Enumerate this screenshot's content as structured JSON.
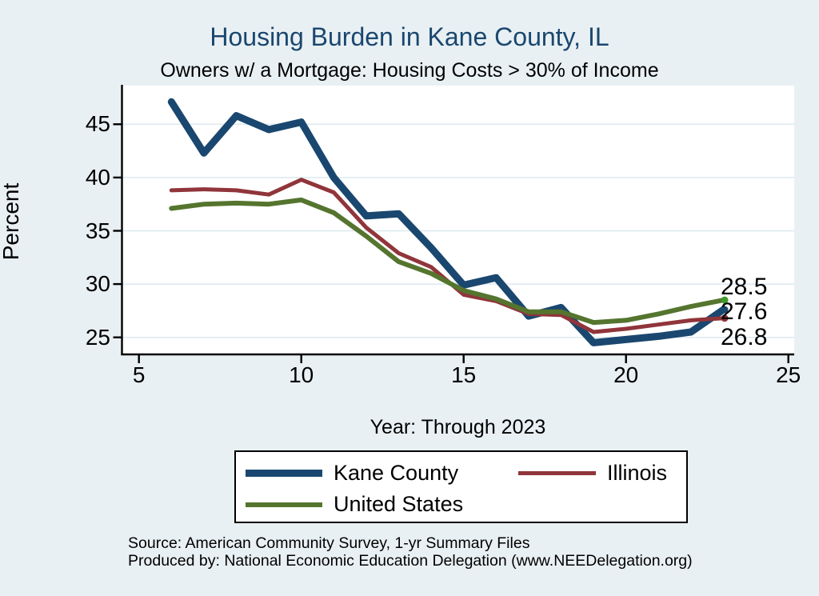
{
  "header": {
    "title": "Housing Burden in Kane County, IL",
    "subtitle": "Owners w/ a Mortgage: Housing Costs > 30% of Income"
  },
  "chart_data": {
    "type": "line",
    "title": "Housing Burden in Kane County, IL",
    "subtitle": "Owners w/ a Mortgage: Housing Costs > 30% of Income",
    "xlabel": "Year: Through 2023",
    "ylabel": "Percent",
    "xlim": [
      5,
      25
    ],
    "ylim": [
      24,
      47.5
    ],
    "xticks": [
      5,
      10,
      15,
      20,
      25
    ],
    "yticks": [
      25,
      30,
      35,
      40,
      45
    ],
    "grid": "horizontal",
    "legend_position": "bottom",
    "x": [
      6,
      7,
      8,
      9,
      10,
      11,
      12,
      13,
      14,
      15,
      16,
      17,
      18,
      19,
      20,
      21,
      22,
      23
    ],
    "series": [
      {
        "name": "Kane County",
        "color": "#1a476f",
        "line_width": 9,
        "values": [
          47.1,
          42.3,
          45.8,
          44.5,
          45.2,
          40.0,
          36.4,
          36.6,
          33.4,
          29.9,
          30.6,
          27.0,
          27.8,
          24.5,
          24.8,
          25.1,
          25.5,
          27.6
        ],
        "end_label": "27.6"
      },
      {
        "name": "Illinois",
        "color": "#90353b",
        "line_width": 5,
        "values": [
          38.8,
          38.9,
          38.8,
          38.4,
          39.8,
          38.6,
          35.3,
          32.9,
          31.6,
          29.0,
          28.4,
          27.2,
          27.1,
          25.5,
          25.8,
          26.2,
          26.6,
          26.8
        ],
        "end_label": "26.8"
      },
      {
        "name": "United States",
        "color": "#55752f",
        "marker_color": "#3f9b28",
        "line_width": 6,
        "values": [
          37.1,
          37.5,
          37.6,
          37.5,
          37.9,
          36.7,
          34.5,
          32.1,
          31.0,
          29.4,
          28.6,
          27.4,
          27.4,
          26.4,
          26.6,
          27.2,
          27.9,
          28.5
        ],
        "end_label": "28.5"
      }
    ],
    "end_labels": [
      "28.5",
      "27.6",
      "26.8"
    ]
  },
  "legend": {
    "items": [
      {
        "label": "Kane County",
        "color": "#1a476f"
      },
      {
        "label": "Illinois",
        "color": "#90353b"
      },
      {
        "label": "United States",
        "color": "#55752f"
      }
    ]
  },
  "footer": {
    "source": "Source: American Community Survey, 1-yr Summary Files",
    "produced_by": "Produced by: National Economic Education Delegation (www.NEEDelegation.org)"
  },
  "colors": {
    "background": "#e9f0f3",
    "plot_background": "#ffffff",
    "gridline": "#dce9ef",
    "axis": "#000000",
    "title": "#1a476f"
  }
}
